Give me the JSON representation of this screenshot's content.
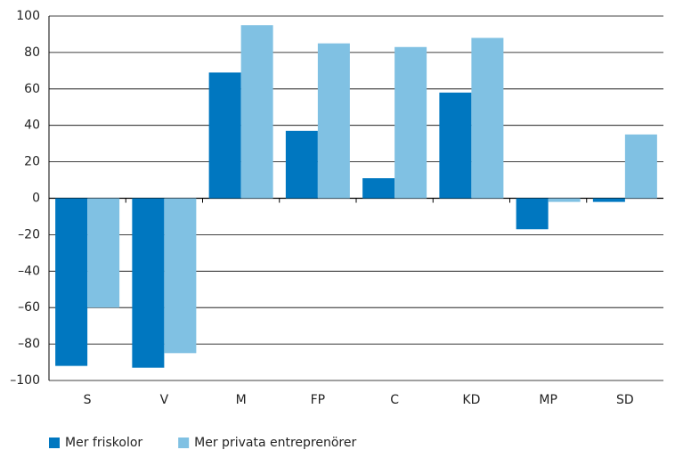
{
  "chart_data": {
    "type": "bar",
    "categories": [
      "S",
      "V",
      "M",
      "FP",
      "C",
      "KD",
      "MP",
      "SD"
    ],
    "series": [
      {
        "name": "Mer friskolor",
        "color": "#0077c0",
        "values": [
          -92,
          -93,
          69,
          37,
          11,
          58,
          -17,
          -2
        ]
      },
      {
        "name": "Mer privata entreprenörer",
        "color": "#80c1e3",
        "values": [
          -60,
          -85,
          95,
          85,
          83,
          88,
          -2,
          35
        ]
      }
    ],
    "ylim": [
      -100,
      100
    ],
    "yticks": [
      {
        "value": -100,
        "label": "–100"
      },
      {
        "value": -80,
        "label": "–80"
      },
      {
        "value": -60,
        "label": "–60"
      },
      {
        "value": -40,
        "label": "–40"
      },
      {
        "value": -20,
        "label": "–20"
      },
      0,
      20,
      40,
      60,
      80,
      100
    ],
    "grid": true,
    "legend": "bottom-left"
  }
}
